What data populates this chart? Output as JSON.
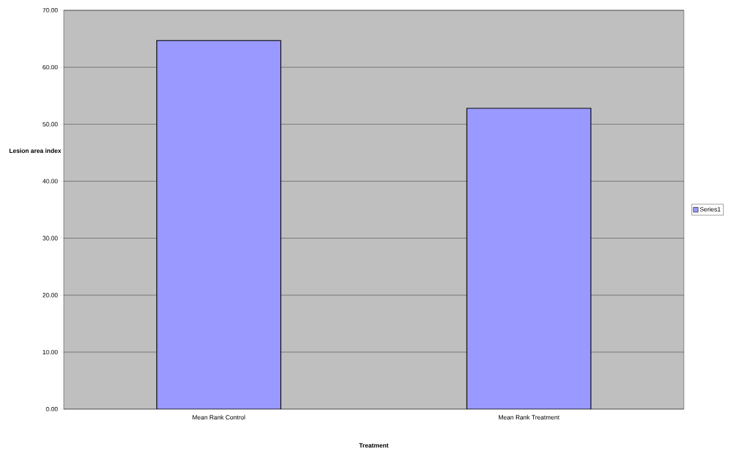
{
  "chart_data": {
    "type": "bar",
    "xlabel": "Treatment",
    "ylabel": "Lesion area index",
    "categories": [
      "Mean Rank Control",
      "Mean Rank Treatment"
    ],
    "series": [
      {
        "name": "Series1",
        "color": "#9999ff",
        "values": [
          64.7,
          52.8
        ]
      }
    ],
    "ylim": [
      0,
      70
    ],
    "yticks": [
      {
        "value": 0,
        "label": "0.00"
      },
      {
        "value": 10,
        "label": "10.00"
      },
      {
        "value": 20,
        "label": "20.00"
      },
      {
        "value": 30,
        "label": "30.00"
      },
      {
        "value": 40,
        "label": "40.00"
      },
      {
        "value": 50,
        "label": "50.00"
      },
      {
        "value": 60,
        "label": "60.00"
      },
      {
        "value": 70,
        "label": "70.00"
      }
    ],
    "grid": "y",
    "legend": "right"
  }
}
